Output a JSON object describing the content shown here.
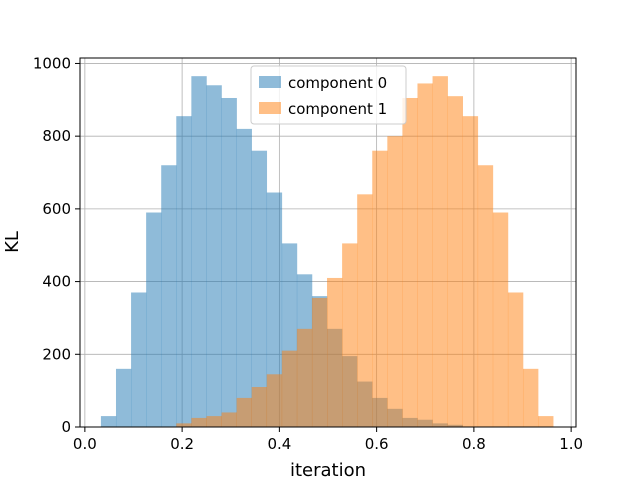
{
  "chart_data": {
    "type": "histogram",
    "xlabel": "iteration",
    "ylabel": "KL",
    "xlim": [
      -0.01,
      1.01
    ],
    "ylim": [
      0,
      1015
    ],
    "xticks": [
      0.0,
      0.2,
      0.4,
      0.6,
      0.8,
      1.0
    ],
    "xtick_labels": [
      "0.0",
      "0.2",
      "0.4",
      "0.6",
      "0.8",
      "1.0"
    ],
    "yticks": [
      0,
      200,
      400,
      600,
      800,
      1000
    ],
    "ytick_labels": [
      "0",
      "200",
      "400",
      "600",
      "800",
      "1000"
    ],
    "grid": true,
    "legend": {
      "placement": "upper-center"
    },
    "series": [
      {
        "name": "component 0",
        "color": "#1f77b4",
        "alpha": 0.5,
        "bin_edges": [
          0.033,
          0.064,
          0.095,
          0.126,
          0.157,
          0.188,
          0.219,
          0.25,
          0.281,
          0.312,
          0.343,
          0.374,
          0.405,
          0.436,
          0.467,
          0.498,
          0.529,
          0.56,
          0.591,
          0.622,
          0.653,
          0.684,
          0.715,
          0.746,
          0.777
        ],
        "counts": [
          30,
          160,
          370,
          590,
          720,
          855,
          965,
          940,
          905,
          820,
          760,
          645,
          505,
          420,
          360,
          270,
          195,
          125,
          80,
          50,
          25,
          20,
          10,
          6
        ]
      },
      {
        "name": "component 1",
        "color": "#ff7f0e",
        "alpha": 0.5,
        "bin_edges": [
          0.188,
          0.219,
          0.25,
          0.281,
          0.312,
          0.343,
          0.374,
          0.405,
          0.436,
          0.467,
          0.498,
          0.529,
          0.56,
          0.591,
          0.622,
          0.653,
          0.684,
          0.715,
          0.746,
          0.777,
          0.808,
          0.839,
          0.87,
          0.901,
          0.932,
          0.963
        ],
        "counts": [
          10,
          25,
          30,
          40,
          80,
          110,
          145,
          210,
          270,
          355,
          410,
          505,
          640,
          760,
          800,
          905,
          945,
          965,
          910,
          855,
          720,
          590,
          370,
          160,
          30
        ]
      }
    ]
  }
}
